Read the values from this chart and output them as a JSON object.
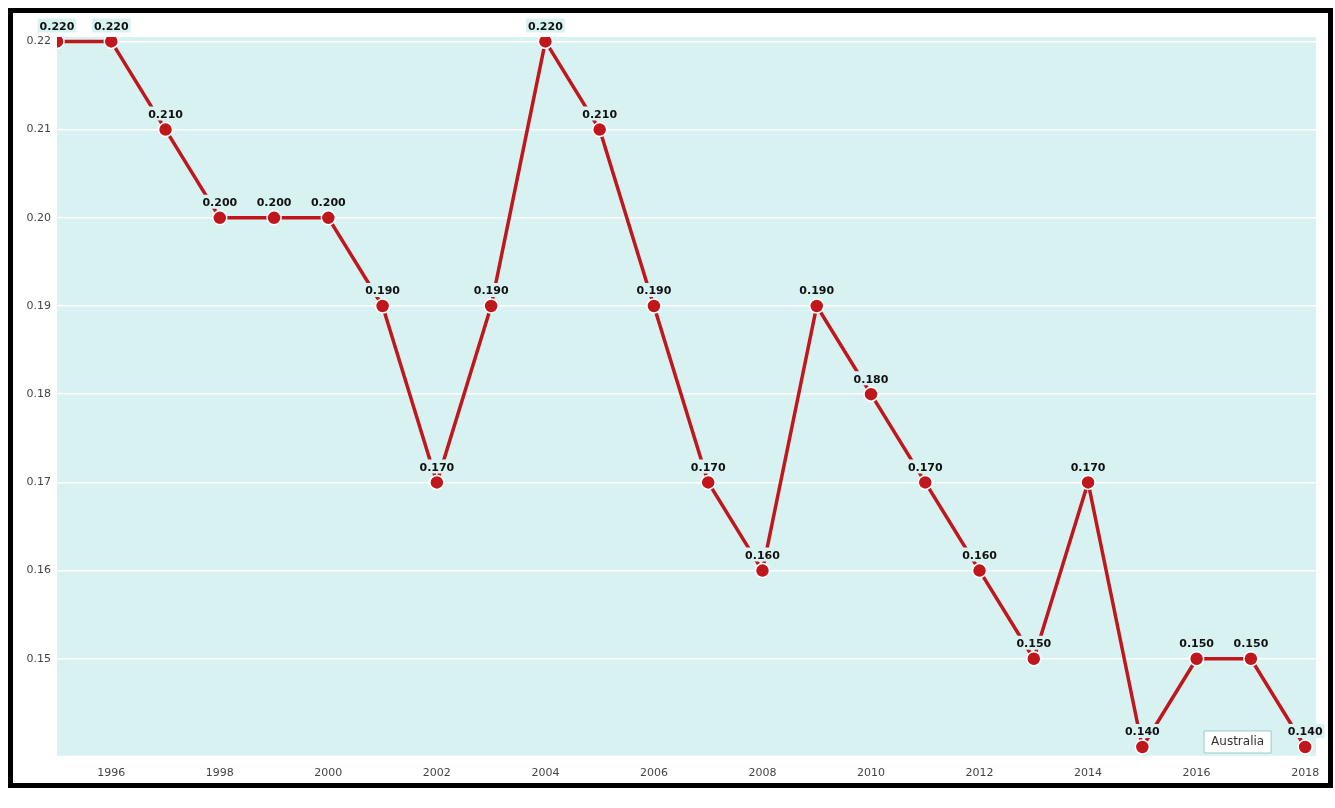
{
  "chart_data": {
    "type": "line",
    "x": [
      1995,
      1996,
      1997,
      1998,
      1999,
      2000,
      2001,
      2002,
      2003,
      2004,
      2005,
      2006,
      2007,
      2008,
      2009,
      2010,
      2011,
      2012,
      2013,
      2014,
      2015,
      2016,
      2017,
      2018
    ],
    "series": [
      {
        "name": "Australia",
        "color": "#c0171c",
        "values": [
          0.22,
          0.22,
          0.21,
          0.2,
          0.2,
          0.2,
          0.19,
          0.17,
          0.19,
          0.22,
          0.21,
          0.19,
          0.17,
          0.16,
          0.19,
          0.18,
          0.17,
          0.16,
          0.15,
          0.17,
          0.14,
          0.15,
          0.15,
          0.14
        ],
        "value_labels": [
          "0.220",
          "0.220",
          "0.210",
          "0.200",
          "0.200",
          "0.200",
          "0.190",
          "0.170",
          "0.190",
          "0.220",
          "0.210",
          "0.190",
          "0.170",
          "0.160",
          "0.190",
          "0.180",
          "0.170",
          "0.160",
          "0.150",
          "0.170",
          "0.140",
          "0.150",
          "0.150",
          "0.140"
        ]
      }
    ],
    "xlim": [
      1995,
      2018.2
    ],
    "xticks": [
      1996,
      1998,
      2000,
      2002,
      2004,
      2006,
      2008,
      2010,
      2012,
      2014,
      2016,
      2018
    ],
    "ylim": [
      0.139,
      0.2205
    ],
    "yticks": [
      {
        "value": 0.15,
        "label": "0.15"
      },
      {
        "value": 0.16,
        "label": "0.16"
      },
      {
        "value": 0.17,
        "label": "0.17"
      },
      {
        "value": 0.18,
        "label": "0.18"
      },
      {
        "value": 0.19,
        "label": "0.19"
      },
      {
        "value": 0.2,
        "label": "0.20"
      },
      {
        "value": 0.21,
        "label": "0.21"
      },
      {
        "value": 0.22,
        "label": "0.22"
      }
    ],
    "grid": "y",
    "legend": false,
    "marker": "circle",
    "line_style": "solid"
  }
}
